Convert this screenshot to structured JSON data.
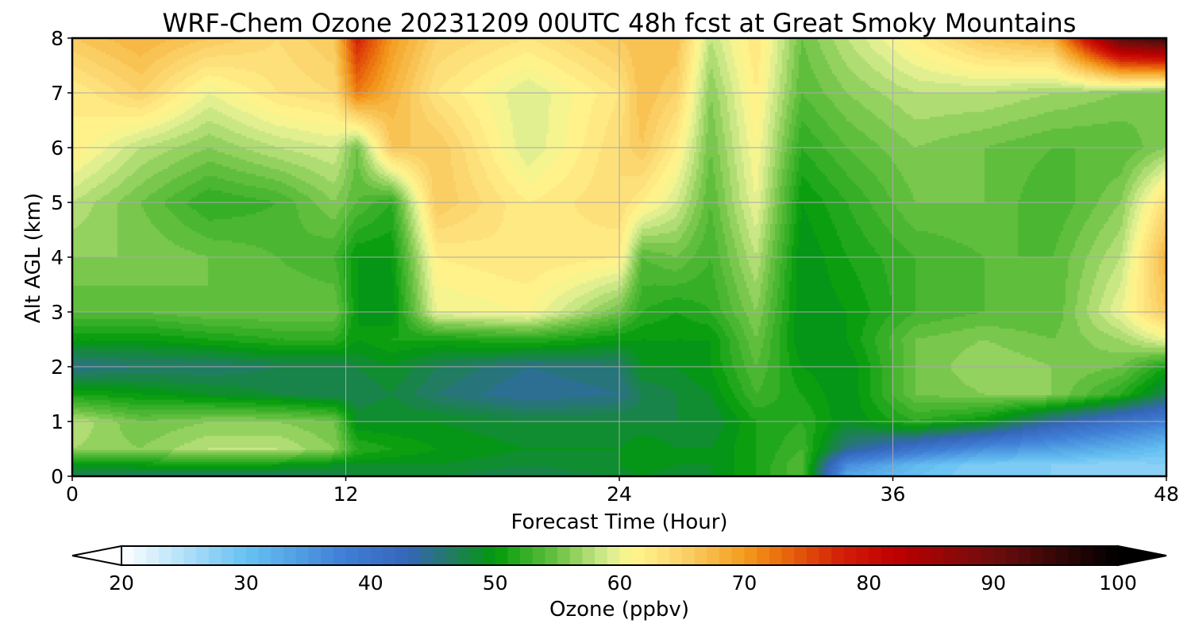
{
  "chart_data": {
    "type": "heatmap",
    "title": "WRF-Chem Ozone  20231209 00UTC 48h fcst at Great Smoky Mountains",
    "xlabel": "Forecast Time (Hour)",
    "ylabel": "Alt AGL (km)",
    "xlim": [
      0,
      48
    ],
    "ylim": [
      0,
      8
    ],
    "xticks": [
      0,
      12,
      24,
      36,
      48
    ],
    "xtick_labels": [
      "0",
      "12",
      "24",
      "36",
      "48"
    ],
    "yticks": [
      0,
      1,
      2,
      3,
      4,
      5,
      6,
      7,
      8
    ],
    "ytick_labels": [
      "0",
      "1",
      "2",
      "3",
      "4",
      "5",
      "6",
      "7",
      "8"
    ],
    "grid": true,
    "x": [
      0,
      3,
      6,
      9,
      11.5,
      12.5,
      14,
      16,
      20,
      24,
      25,
      26.5,
      28,
      30,
      32,
      34,
      37,
      40,
      43,
      46,
      48
    ],
    "y": [
      0,
      0.2,
      0.5,
      1,
      1.5,
      2,
      2.5,
      3,
      4,
      5,
      6,
      7,
      8
    ],
    "values": [
      [
        47,
        46,
        46,
        46,
        47,
        48,
        48,
        48,
        47,
        48,
        49,
        48,
        49,
        51,
        54,
        33,
        30,
        28,
        28,
        27,
        28
      ],
      [
        49,
        50,
        51,
        50,
        49,
        49,
        49,
        49,
        48,
        49,
        50,
        49,
        49,
        51,
        54,
        36,
        31,
        28,
        28,
        27,
        28
      ],
      [
        57,
        56,
        58,
        58,
        56,
        52,
        51,
        50,
        49,
        49,
        50,
        49,
        49,
        51,
        53,
        45,
        40,
        36,
        34,
        32,
        30
      ],
      [
        58,
        55,
        56,
        56,
        55,
        49,
        49,
        49,
        48,
        48,
        48,
        48,
        48,
        51,
        52,
        49,
        52,
        50,
        44,
        40,
        38
      ],
      [
        51,
        50,
        49,
        48,
        47,
        47,
        48,
        46,
        44,
        45,
        47,
        48,
        49,
        53,
        51,
        49,
        55,
        56,
        56,
        52,
        47
      ],
      [
        45,
        46,
        46,
        47,
        47,
        48,
        49,
        47,
        45,
        46,
        49,
        49,
        50,
        54,
        50,
        49,
        55,
        57,
        56,
        55,
        51
      ],
      [
        50,
        50,
        51,
        52,
        52,
        50,
        51,
        51,
        52,
        50,
        50,
        50,
        50,
        55,
        49,
        50,
        55,
        56,
        55,
        57,
        60
      ],
      [
        54,
        54,
        55,
        55,
        55,
        50,
        49,
        60,
        61,
        55,
        52,
        51,
        52,
        56,
        49,
        50,
        53,
        54,
        54,
        60,
        66
      ],
      [
        56,
        56,
        55,
        54,
        53,
        50,
        50,
        62,
        63,
        62,
        54,
        55,
        53,
        58,
        49,
        51,
        53,
        54,
        54,
        58,
        68
      ],
      [
        58,
        55,
        52,
        53,
        56,
        54,
        52,
        66,
        62,
        64,
        62,
        59,
        54,
        60,
        50,
        52,
        55,
        55,
        53,
        56,
        64
      ],
      [
        62,
        58,
        56,
        58,
        59,
        55,
        66,
        66,
        59,
        64,
        66,
        62,
        55,
        61,
        52,
        54,
        56,
        55,
        54,
        54,
        56
      ],
      [
        62,
        65,
        60,
        63,
        64,
        72,
        68,
        63,
        59,
        63,
        67,
        65,
        56,
        62,
        54,
        56,
        58,
        58,
        57,
        56,
        55
      ],
      [
        66,
        68,
        66,
        64,
        66,
        78,
        70,
        65,
        63,
        66,
        67,
        67,
        58,
        63,
        55,
        58,
        62,
        66,
        68,
        92,
        95
      ]
    ],
    "colorbar": {
      "label": "Ozone  (ppbv)",
      "min": 20,
      "max": 100,
      "step": 1,
      "ticks": [
        20,
        30,
        40,
        50,
        60,
        70,
        80,
        90,
        100
      ],
      "tick_labels": [
        "20",
        "30",
        "40",
        "50",
        "60",
        "70",
        "80",
        "90",
        "100"
      ],
      "extend": "both",
      "color_stops": [
        [
          20,
          "#ffffff"
        ],
        [
          30,
          "#66c2f2"
        ],
        [
          38,
          "#3f7ed6"
        ],
        [
          43,
          "#3565b8"
        ],
        [
          47,
          "#1e7f56"
        ],
        [
          50,
          "#009b0a"
        ],
        [
          55,
          "#6bc243"
        ],
        [
          59,
          "#d8ec90"
        ],
        [
          61,
          "#fff68f"
        ],
        [
          65,
          "#fbd36b"
        ],
        [
          70,
          "#f39c1e"
        ],
        [
          73,
          "#ea6c0c"
        ],
        [
          78,
          "#d21c08"
        ],
        [
          82,
          "#c00000"
        ],
        [
          90,
          "#6d0d0d"
        ],
        [
          100,
          "#000000"
        ]
      ]
    }
  }
}
